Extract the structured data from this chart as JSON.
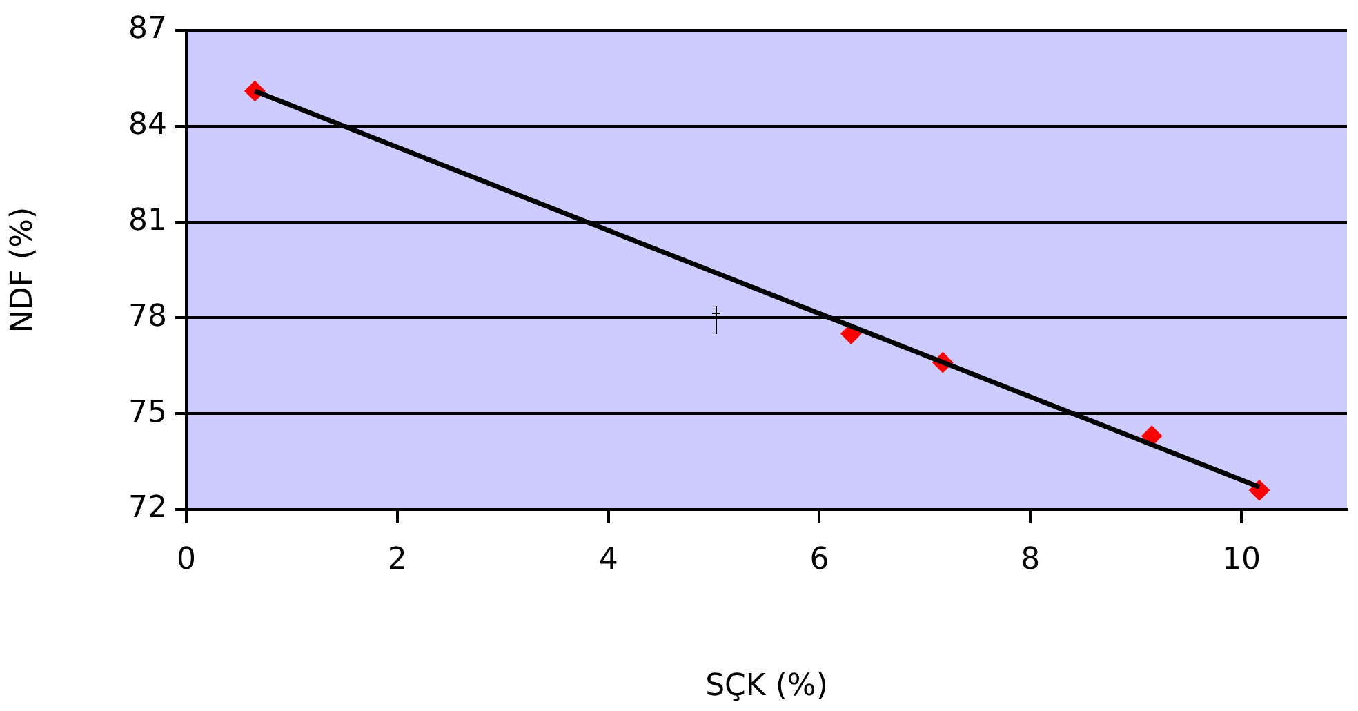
{
  "chart_data": {
    "type": "scatter",
    "xlabel": "SÇK (%)",
    "ylabel": "NDF (%)",
    "xlim": [
      0,
      11
    ],
    "xticks": [
      0,
      2,
      4,
      6,
      8,
      10
    ],
    "ylim": [
      72,
      87
    ],
    "yticks": [
      72,
      75,
      78,
      81,
      84,
      87
    ],
    "grid": "y",
    "legend": false,
    "marker": "diamond",
    "series": [
      {
        "color": "#ff0000",
        "x": [
          0.65,
          6.3,
          7.17,
          9.15,
          10.17
        ],
        "values": [
          85.1,
          77.5,
          76.6,
          74.3,
          72.6
        ]
      },
      {
        "type": "line",
        "color": "#000000",
        "marker": "none",
        "line_style": "solid",
        "x": [
          0.65,
          10.17
        ],
        "values": [
          85.1,
          72.7
        ]
      }
    ]
  }
}
